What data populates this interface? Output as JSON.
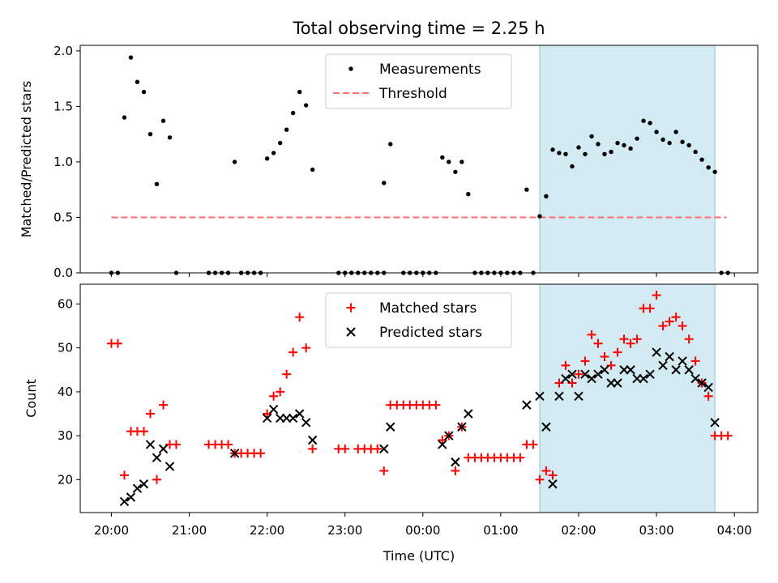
{
  "chart_data": {
    "title": "Total observing time = 2.25 h",
    "colors": {
      "measurements": "#000000",
      "threshold": "#ff7070",
      "matched": "#ff0000",
      "predicted": "#000000",
      "shade_fill": "#add8e6",
      "shade_edge": "#8ccbd6"
    },
    "xaxis": {
      "label": "Time (UTC)",
      "unit": "hours since 20:00",
      "range": [
        -0.4,
        8.3
      ],
      "ticks": [
        0,
        1,
        2,
        3,
        4,
        5,
        6,
        7,
        8
      ],
      "tick_labels": [
        "20:00",
        "21:00",
        "22:00",
        "23:00",
        "00:00",
        "01:00",
        "02:00",
        "03:00",
        "04:00"
      ]
    },
    "shaded_interval": [
      5.5,
      7.75
    ],
    "panels": [
      {
        "type": "scatter",
        "ylabel": "Matched/Predicted stars",
        "ylim": [
          0,
          2.05
        ],
        "yticks": [
          0.0,
          0.5,
          1.0,
          1.5,
          2.0
        ],
        "ytick_labels": [
          "0.0",
          "0.5",
          "1.0",
          "1.5",
          "2.0"
        ],
        "legend": {
          "position": "upper center",
          "entries": [
            "Measurements",
            "Threshold"
          ]
        },
        "threshold": {
          "name": "Threshold",
          "value": 0.5,
          "x_range": [
            0,
            7.9
          ]
        },
        "series": [
          {
            "name": "Measurements",
            "marker": "dot",
            "points": [
              [
                0.0,
                0
              ],
              [
                0.083,
                0
              ],
              [
                0.167,
                1.4
              ],
              [
                0.25,
                1.94
              ],
              [
                0.333,
                1.72
              ],
              [
                0.417,
                1.63
              ],
              [
                0.5,
                1.25
              ],
              [
                0.583,
                0.8
              ],
              [
                0.667,
                1.37
              ],
              [
                0.75,
                1.22
              ],
              [
                0.833,
                0
              ],
              [
                1.25,
                0
              ],
              [
                1.333,
                0
              ],
              [
                1.417,
                0
              ],
              [
                1.5,
                0
              ],
              [
                1.583,
                1.0
              ],
              [
                1.667,
                0
              ],
              [
                1.75,
                0
              ],
              [
                1.833,
                0
              ],
              [
                1.917,
                0
              ],
              [
                2.0,
                1.03
              ],
              [
                2.083,
                1.08
              ],
              [
                2.167,
                1.17
              ],
              [
                2.25,
                1.29
              ],
              [
                2.333,
                1.44
              ],
              [
                2.417,
                1.63
              ],
              [
                2.5,
                1.51
              ],
              [
                2.583,
                0.93
              ],
              [
                2.917,
                0
              ],
              [
                3.0,
                0
              ],
              [
                3.083,
                0
              ],
              [
                3.167,
                0
              ],
              [
                3.25,
                0
              ],
              [
                3.333,
                0
              ],
              [
                3.417,
                0
              ],
              [
                3.5,
                0
              ],
              [
                3.5,
                0.81
              ],
              [
                3.583,
                1.16
              ],
              [
                3.75,
                0
              ],
              [
                3.833,
                0
              ],
              [
                3.917,
                0
              ],
              [
                4.0,
                0
              ],
              [
                4.083,
                0
              ],
              [
                4.167,
                0
              ],
              [
                4.25,
                1.04
              ],
              [
                4.333,
                1.0
              ],
              [
                4.417,
                0.91
              ],
              [
                4.5,
                1.0
              ],
              [
                4.583,
                0.71
              ],
              [
                4.667,
                0
              ],
              [
                4.75,
                0
              ],
              [
                4.833,
                0
              ],
              [
                4.917,
                0
              ],
              [
                5.0,
                0
              ],
              [
                5.083,
                0
              ],
              [
                5.167,
                0
              ],
              [
                5.25,
                0
              ],
              [
                5.333,
                0.75
              ],
              [
                5.417,
                0
              ],
              [
                5.5,
                0.51
              ],
              [
                5.583,
                0.69
              ],
              [
                5.667,
                1.11
              ],
              [
                5.75,
                1.08
              ],
              [
                5.833,
                1.07
              ],
              [
                5.917,
                0.96
              ],
              [
                6.0,
                1.13
              ],
              [
                6.083,
                1.07
              ],
              [
                6.167,
                1.23
              ],
              [
                6.25,
                1.16
              ],
              [
                6.333,
                1.07
              ],
              [
                6.417,
                1.09
              ],
              [
                6.5,
                1.17
              ],
              [
                6.583,
                1.15
              ],
              [
                6.667,
                1.12
              ],
              [
                6.75,
                1.21
              ],
              [
                6.833,
                1.37
              ],
              [
                6.917,
                1.35
              ],
              [
                7.0,
                1.27
              ],
              [
                7.083,
                1.2
              ],
              [
                7.167,
                1.17
              ],
              [
                7.25,
                1.27
              ],
              [
                7.333,
                1.18
              ],
              [
                7.417,
                1.15
              ],
              [
                7.5,
                1.09
              ],
              [
                7.583,
                1.02
              ],
              [
                7.667,
                0.95
              ],
              [
                7.75,
                0.91
              ],
              [
                7.833,
                0
              ],
              [
                7.917,
                0
              ]
            ]
          }
        ]
      },
      {
        "type": "scatter",
        "ylabel": "Count",
        "ylim": [
          12.5,
          64.5
        ],
        "yticks": [
          20,
          30,
          40,
          50,
          60
        ],
        "ytick_labels": [
          "20",
          "30",
          "40",
          "50",
          "60"
        ],
        "legend": {
          "position": "upper center",
          "entries": [
            "Matched stars",
            "Predicted stars"
          ]
        },
        "series": [
          {
            "name": "Matched stars",
            "marker": "plus",
            "points": [
              [
                0.0,
                51
              ],
              [
                0.083,
                51
              ],
              [
                0.167,
                21
              ],
              [
                0.25,
                31
              ],
              [
                0.333,
                31
              ],
              [
                0.417,
                31
              ],
              [
                0.5,
                35
              ],
              [
                0.583,
                20
              ],
              [
                0.667,
                37
              ],
              [
                0.75,
                28
              ],
              [
                0.833,
                28
              ],
              [
                1.25,
                28
              ],
              [
                1.333,
                28
              ],
              [
                1.417,
                28
              ],
              [
                1.5,
                28
              ],
              [
                1.583,
                26
              ],
              [
                1.667,
                26
              ],
              [
                1.75,
                26
              ],
              [
                1.833,
                26
              ],
              [
                1.917,
                26
              ],
              [
                2.0,
                35
              ],
              [
                2.083,
                39
              ],
              [
                2.167,
                40
              ],
              [
                2.25,
                44
              ],
              [
                2.333,
                49
              ],
              [
                2.417,
                57
              ],
              [
                2.5,
                50
              ],
              [
                2.583,
                27
              ],
              [
                2.917,
                27
              ],
              [
                3.0,
                27
              ],
              [
                3.167,
                27
              ],
              [
                3.25,
                27
              ],
              [
                3.333,
                27
              ],
              [
                3.417,
                27
              ],
              [
                3.5,
                22
              ],
              [
                3.583,
                37
              ],
              [
                3.667,
                37
              ],
              [
                3.75,
                37
              ],
              [
                3.833,
                37
              ],
              [
                3.917,
                37
              ],
              [
                4.0,
                37
              ],
              [
                4.083,
                37
              ],
              [
                4.167,
                37
              ],
              [
                4.25,
                29
              ],
              [
                4.333,
                30
              ],
              [
                4.417,
                22
              ],
              [
                4.5,
                32
              ],
              [
                4.583,
                25
              ],
              [
                4.667,
                25
              ],
              [
                4.75,
                25
              ],
              [
                4.833,
                25
              ],
              [
                4.917,
                25
              ],
              [
                5.0,
                25
              ],
              [
                5.083,
                25
              ],
              [
                5.167,
                25
              ],
              [
                5.25,
                25
              ],
              [
                5.333,
                28
              ],
              [
                5.417,
                28
              ],
              [
                5.5,
                20
              ],
              [
                5.583,
                22
              ],
              [
                5.667,
                21
              ],
              [
                5.75,
                42
              ],
              [
                5.833,
                46
              ],
              [
                5.917,
                42
              ],
              [
                6.0,
                44
              ],
              [
                6.083,
                47
              ],
              [
                6.167,
                53
              ],
              [
                6.25,
                51
              ],
              [
                6.333,
                48
              ],
              [
                6.417,
                46
              ],
              [
                6.5,
                49
              ],
              [
                6.583,
                52
              ],
              [
                6.667,
                51
              ],
              [
                6.75,
                52
              ],
              [
                6.833,
                59
              ],
              [
                6.917,
                59
              ],
              [
                7.0,
                62
              ],
              [
                7.083,
                55
              ],
              [
                7.167,
                56
              ],
              [
                7.25,
                57
              ],
              [
                7.333,
                55
              ],
              [
                7.417,
                52
              ],
              [
                7.5,
                47
              ],
              [
                7.583,
                42
              ],
              [
                7.667,
                39
              ],
              [
                7.75,
                30
              ],
              [
                7.833,
                30
              ],
              [
                7.917,
                30
              ]
            ]
          },
          {
            "name": "Predicted stars",
            "marker": "x",
            "points": [
              [
                0.167,
                15
              ],
              [
                0.25,
                16
              ],
              [
                0.333,
                18
              ],
              [
                0.417,
                19
              ],
              [
                0.5,
                28
              ],
              [
                0.583,
                25
              ],
              [
                0.667,
                27
              ],
              [
                0.75,
                23
              ],
              [
                1.583,
                26
              ],
              [
                2.0,
                34
              ],
              [
                2.083,
                36
              ],
              [
                2.167,
                34
              ],
              [
                2.25,
                34
              ],
              [
                2.333,
                34
              ],
              [
                2.417,
                35
              ],
              [
                2.5,
                33
              ],
              [
                2.583,
                29
              ],
              [
                3.5,
                27
              ],
              [
                3.583,
                32
              ],
              [
                4.25,
                28
              ],
              [
                4.333,
                30
              ],
              [
                4.417,
                24
              ],
              [
                4.5,
                32
              ],
              [
                4.583,
                35
              ],
              [
                5.333,
                37
              ],
              [
                5.5,
                39
              ],
              [
                5.583,
                32
              ],
              [
                5.667,
                19
              ],
              [
                5.75,
                39
              ],
              [
                5.833,
                43
              ],
              [
                5.917,
                44
              ],
              [
                6.0,
                39
              ],
              [
                6.083,
                44
              ],
              [
                6.167,
                43
              ],
              [
                6.25,
                44
              ],
              [
                6.333,
                45
              ],
              [
                6.417,
                42
              ],
              [
                6.5,
                42
              ],
              [
                6.583,
                45
              ],
              [
                6.667,
                45
              ],
              [
                6.75,
                43
              ],
              [
                6.833,
                43
              ],
              [
                6.917,
                44
              ],
              [
                7.0,
                49
              ],
              [
                7.083,
                46
              ],
              [
                7.167,
                48
              ],
              [
                7.25,
                45
              ],
              [
                7.333,
                47
              ],
              [
                7.417,
                45
              ],
              [
                7.5,
                43
              ],
              [
                7.583,
                42
              ],
              [
                7.667,
                41
              ],
              [
                7.75,
                33
              ]
            ]
          }
        ]
      }
    ]
  }
}
